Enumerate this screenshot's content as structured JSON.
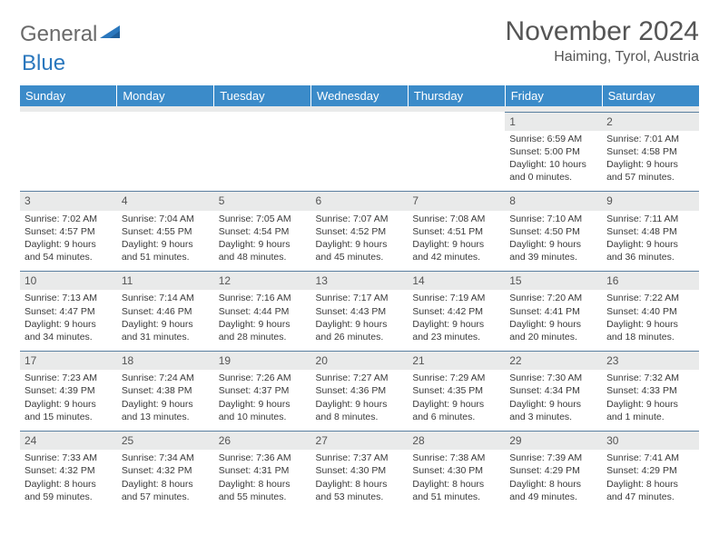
{
  "logo": {
    "part1": "General",
    "part2": "Blue"
  },
  "title": "November 2024",
  "location": "Haiming, Tyrol, Austria",
  "colors": {
    "header_bg": "#3b8bc9",
    "header_text": "#ffffff",
    "daynum_bg": "#e9eaea",
    "border": "#5a7fa0",
    "text": "#3a3a3a",
    "logo_gray": "#6a6a6a",
    "logo_blue": "#2a77bd"
  },
  "typography": {
    "title_fontsize": 30,
    "location_fontsize": 16,
    "header_fontsize": 13,
    "cell_fontsize": 10.5,
    "daynum_fontsize": 12
  },
  "weekdays": [
    "Sunday",
    "Monday",
    "Tuesday",
    "Wednesday",
    "Thursday",
    "Friday",
    "Saturday"
  ],
  "weeks": [
    [
      null,
      null,
      null,
      null,
      null,
      {
        "n": "1",
        "sr": "Sunrise: 6:59 AM",
        "ss": "Sunset: 5:00 PM",
        "dl": "Daylight: 10 hours and 0 minutes."
      },
      {
        "n": "2",
        "sr": "Sunrise: 7:01 AM",
        "ss": "Sunset: 4:58 PM",
        "dl": "Daylight: 9 hours and 57 minutes."
      }
    ],
    [
      {
        "n": "3",
        "sr": "Sunrise: 7:02 AM",
        "ss": "Sunset: 4:57 PM",
        "dl": "Daylight: 9 hours and 54 minutes."
      },
      {
        "n": "4",
        "sr": "Sunrise: 7:04 AM",
        "ss": "Sunset: 4:55 PM",
        "dl": "Daylight: 9 hours and 51 minutes."
      },
      {
        "n": "5",
        "sr": "Sunrise: 7:05 AM",
        "ss": "Sunset: 4:54 PM",
        "dl": "Daylight: 9 hours and 48 minutes."
      },
      {
        "n": "6",
        "sr": "Sunrise: 7:07 AM",
        "ss": "Sunset: 4:52 PM",
        "dl": "Daylight: 9 hours and 45 minutes."
      },
      {
        "n": "7",
        "sr": "Sunrise: 7:08 AM",
        "ss": "Sunset: 4:51 PM",
        "dl": "Daylight: 9 hours and 42 minutes."
      },
      {
        "n": "8",
        "sr": "Sunrise: 7:10 AM",
        "ss": "Sunset: 4:50 PM",
        "dl": "Daylight: 9 hours and 39 minutes."
      },
      {
        "n": "9",
        "sr": "Sunrise: 7:11 AM",
        "ss": "Sunset: 4:48 PM",
        "dl": "Daylight: 9 hours and 36 minutes."
      }
    ],
    [
      {
        "n": "10",
        "sr": "Sunrise: 7:13 AM",
        "ss": "Sunset: 4:47 PM",
        "dl": "Daylight: 9 hours and 34 minutes."
      },
      {
        "n": "11",
        "sr": "Sunrise: 7:14 AM",
        "ss": "Sunset: 4:46 PM",
        "dl": "Daylight: 9 hours and 31 minutes."
      },
      {
        "n": "12",
        "sr": "Sunrise: 7:16 AM",
        "ss": "Sunset: 4:44 PM",
        "dl": "Daylight: 9 hours and 28 minutes."
      },
      {
        "n": "13",
        "sr": "Sunrise: 7:17 AM",
        "ss": "Sunset: 4:43 PM",
        "dl": "Daylight: 9 hours and 26 minutes."
      },
      {
        "n": "14",
        "sr": "Sunrise: 7:19 AM",
        "ss": "Sunset: 4:42 PM",
        "dl": "Daylight: 9 hours and 23 minutes."
      },
      {
        "n": "15",
        "sr": "Sunrise: 7:20 AM",
        "ss": "Sunset: 4:41 PM",
        "dl": "Daylight: 9 hours and 20 minutes."
      },
      {
        "n": "16",
        "sr": "Sunrise: 7:22 AM",
        "ss": "Sunset: 4:40 PM",
        "dl": "Daylight: 9 hours and 18 minutes."
      }
    ],
    [
      {
        "n": "17",
        "sr": "Sunrise: 7:23 AM",
        "ss": "Sunset: 4:39 PM",
        "dl": "Daylight: 9 hours and 15 minutes."
      },
      {
        "n": "18",
        "sr": "Sunrise: 7:24 AM",
        "ss": "Sunset: 4:38 PM",
        "dl": "Daylight: 9 hours and 13 minutes."
      },
      {
        "n": "19",
        "sr": "Sunrise: 7:26 AM",
        "ss": "Sunset: 4:37 PM",
        "dl": "Daylight: 9 hours and 10 minutes."
      },
      {
        "n": "20",
        "sr": "Sunrise: 7:27 AM",
        "ss": "Sunset: 4:36 PM",
        "dl": "Daylight: 9 hours and 8 minutes."
      },
      {
        "n": "21",
        "sr": "Sunrise: 7:29 AM",
        "ss": "Sunset: 4:35 PM",
        "dl": "Daylight: 9 hours and 6 minutes."
      },
      {
        "n": "22",
        "sr": "Sunrise: 7:30 AM",
        "ss": "Sunset: 4:34 PM",
        "dl": "Daylight: 9 hours and 3 minutes."
      },
      {
        "n": "23",
        "sr": "Sunrise: 7:32 AM",
        "ss": "Sunset: 4:33 PM",
        "dl": "Daylight: 9 hours and 1 minute."
      }
    ],
    [
      {
        "n": "24",
        "sr": "Sunrise: 7:33 AM",
        "ss": "Sunset: 4:32 PM",
        "dl": "Daylight: 8 hours and 59 minutes."
      },
      {
        "n": "25",
        "sr": "Sunrise: 7:34 AM",
        "ss": "Sunset: 4:32 PM",
        "dl": "Daylight: 8 hours and 57 minutes."
      },
      {
        "n": "26",
        "sr": "Sunrise: 7:36 AM",
        "ss": "Sunset: 4:31 PM",
        "dl": "Daylight: 8 hours and 55 minutes."
      },
      {
        "n": "27",
        "sr": "Sunrise: 7:37 AM",
        "ss": "Sunset: 4:30 PM",
        "dl": "Daylight: 8 hours and 53 minutes."
      },
      {
        "n": "28",
        "sr": "Sunrise: 7:38 AM",
        "ss": "Sunset: 4:30 PM",
        "dl": "Daylight: 8 hours and 51 minutes."
      },
      {
        "n": "29",
        "sr": "Sunrise: 7:39 AM",
        "ss": "Sunset: 4:29 PM",
        "dl": "Daylight: 8 hours and 49 minutes."
      },
      {
        "n": "30",
        "sr": "Sunrise: 7:41 AM",
        "ss": "Sunset: 4:29 PM",
        "dl": "Daylight: 8 hours and 47 minutes."
      }
    ]
  ]
}
